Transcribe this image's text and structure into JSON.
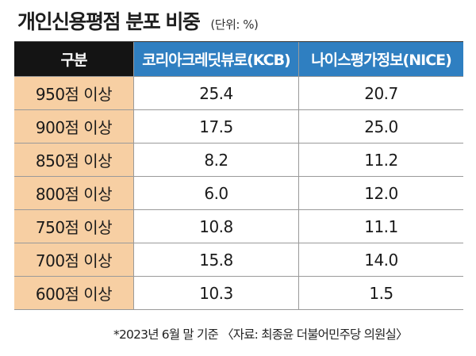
{
  "title": "개인신용평점 분포 비중",
  "unit": "(단위: %)",
  "footnote": "*2023년 6월 말 기준 〈자료: 최종윤 더불어민주당 의원실〉",
  "colors": {
    "header_dark": "#141414",
    "header_blue": "#2f7fc1",
    "label_bg": "#f7cfa3"
  },
  "chart_data": {
    "type": "table",
    "columns": [
      "구분",
      "코리아크레딧뷰로(KCB)",
      "나이스평가정보(NICE)"
    ],
    "categories": [
      "950점 이상",
      "900점 이상",
      "850점 이상",
      "800점 이상",
      "750점 이상",
      "700점 이상",
      "600점 이상"
    ],
    "series": [
      {
        "name": "코리아크레딧뷰로(KCB)",
        "values": [
          "25.4",
          "17.5",
          "8.2",
          "6.0",
          "10.8",
          "15.8",
          "10.3"
        ]
      },
      {
        "name": "나이스평가정보(NICE)",
        "values": [
          "20.7",
          "25.0",
          "11.2",
          "12.0",
          "11.1",
          "14.0",
          "1.5"
        ]
      }
    ]
  }
}
